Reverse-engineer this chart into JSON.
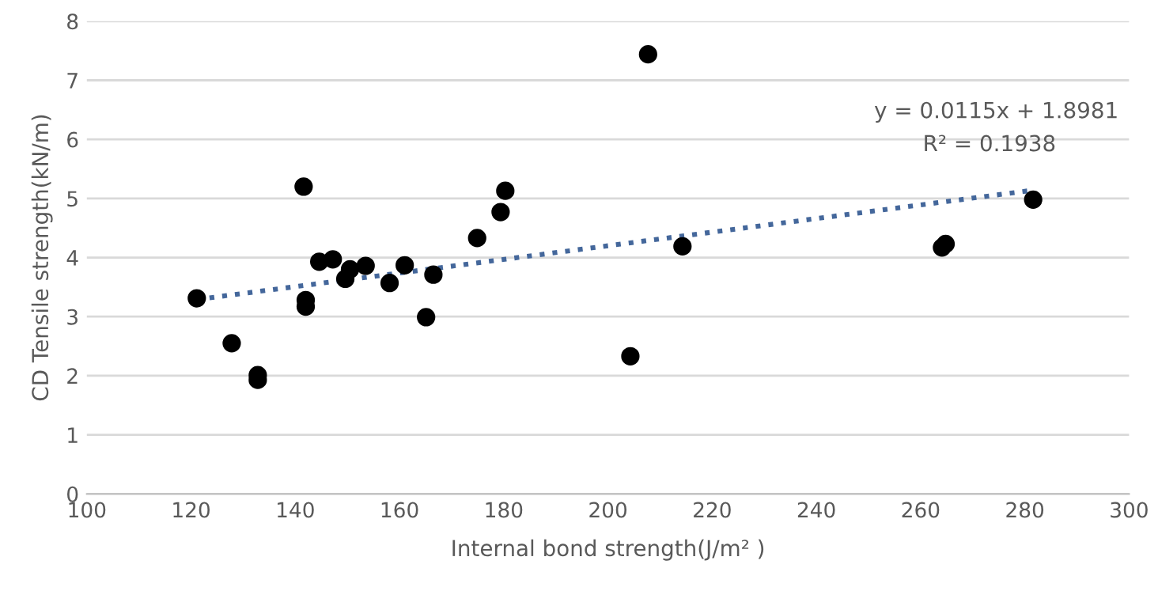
{
  "chart_data": {
    "type": "scatter",
    "xlabel": "Internal bond strength(J/m² )",
    "ylabel": "CD Tensile strength(kN/m)",
    "xlim": [
      100,
      300
    ],
    "xticks": [
      100,
      120,
      140,
      160,
      180,
      200,
      220,
      240,
      260,
      280,
      300
    ],
    "ylim": [
      0,
      8
    ],
    "yticks": [
      0,
      1,
      2,
      3,
      4,
      5,
      6,
      7,
      8
    ],
    "grid": "y",
    "marker": "circle",
    "series": [
      {
        "color": "#000000",
        "x": [
          121.1,
          127.8,
          132.8,
          132.8,
          141.6,
          142.0,
          142.0,
          144.6,
          147.2,
          149.6,
          150.5,
          153.5,
          158.1,
          161.0,
          165.1,
          166.5,
          174.9,
          179.4,
          180.3,
          207.7,
          204.3,
          214.3,
          264.1,
          264.8,
          281.6
        ],
        "values": [
          3.31,
          2.55,
          2.01,
          1.93,
          5.2,
          3.28,
          3.17,
          3.93,
          3.97,
          3.64,
          3.8,
          3.86,
          3.57,
          3.87,
          2.99,
          3.71,
          4.33,
          4.77,
          5.13,
          7.44,
          2.33,
          4.19,
          4.17,
          4.23,
          4.98
        ]
      },
      {
        "type": "line",
        "color": "#44679b",
        "line_style": "dotted",
        "marker": "none",
        "x": [
          121.1,
          281.6
        ],
        "values": [
          3.29,
          5.14
        ]
      }
    ],
    "annotations": [
      "y = 0.0115x + 1.8981",
      "R² = 0.1938"
    ]
  }
}
